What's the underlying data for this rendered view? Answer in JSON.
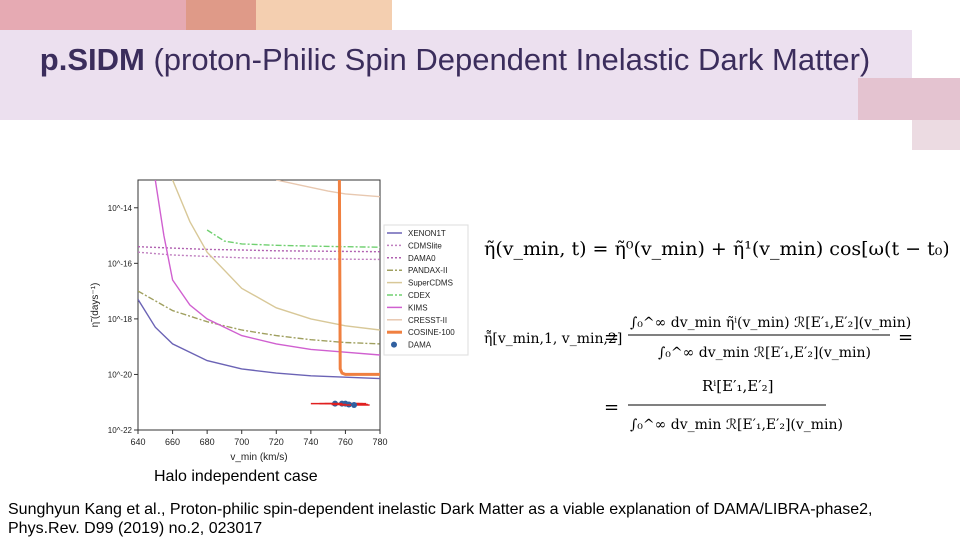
{
  "slide": {
    "title_bold": "p.SIDM",
    "title_rest": " (proton-Philic Spin Dependent Inelastic Dark Matter)",
    "caption": "Halo independent case",
    "citation": "Sunghyun Kang et al., Proton-philic spin-dependent inelastic Dark Matter as a viable explanation of DAMA/LIBRA-phase2, Phys.Rev. D99 (2019) no.2, 023017",
    "colors": {
      "band": "#ece0ef",
      "title": "#3b2d5c",
      "deco_pink": "#e6aab3",
      "deco_orange": "#f2c9a6",
      "deco_salmon": "#e09a8a"
    }
  },
  "chart_data": {
    "type": "line",
    "xlabel": "v_min (km/s)",
    "ylabel": "η̃ (days⁻¹)",
    "xlim": [
      640,
      780
    ],
    "ylim_log10": [
      -22,
      -13
    ],
    "y_scale": "log",
    "x_ticks": [
      "640",
      "660",
      "680",
      "700",
      "720",
      "740",
      "760",
      "780"
    ],
    "y_ticks": [
      "10^-14",
      "10^-16",
      "10^-18",
      "10^-20",
      "10^-22"
    ],
    "legend_position": "right",
    "series": [
      {
        "name": "XENON1T",
        "color": "#6b63b5",
        "style": "solid",
        "x": [
          640,
          650,
          660,
          680,
          700,
          720,
          740,
          760,
          780
        ],
        "log10_y": [
          -17.3,
          -18.3,
          -18.9,
          -19.5,
          -19.8,
          -19.95,
          -20.05,
          -20.1,
          -20.15
        ]
      },
      {
        "name": "CDMSlite",
        "color": "#c080c0",
        "style": "dotted",
        "x": [
          640,
          660,
          680,
          700,
          720,
          740,
          760,
          780
        ],
        "log10_y": [
          -15.6,
          -15.7,
          -15.75,
          -15.8,
          -15.82,
          -15.84,
          -15.85,
          -15.86
        ]
      },
      {
        "name": "DAMA0",
        "color": "#b060b0",
        "style": "dotted",
        "x": [
          640,
          660,
          680,
          700,
          720,
          740,
          760,
          780
        ],
        "log10_y": [
          -15.4,
          -15.45,
          -15.5,
          -15.52,
          -15.55,
          -15.56,
          -15.57,
          -15.58
        ]
      },
      {
        "name": "PANDAX-II",
        "color": "#a0a060",
        "style": "dashdot",
        "x": [
          640,
          660,
          680,
          700,
          720,
          740,
          760,
          780
        ],
        "log10_y": [
          -17.0,
          -17.7,
          -18.1,
          -18.4,
          -18.6,
          -18.75,
          -18.85,
          -18.9
        ]
      },
      {
        "name": "SuperCDMS",
        "color": "#d8c898",
        "style": "solid",
        "x": [
          660,
          670,
          680,
          700,
          720,
          740,
          760,
          780
        ],
        "log10_y": [
          -13.0,
          -14.5,
          -15.6,
          -16.9,
          -17.6,
          -18.0,
          -18.25,
          -18.4
        ]
      },
      {
        "name": "CDEX",
        "color": "#70d070",
        "style": "dashdot",
        "x": [
          680,
          690,
          700,
          720,
          740,
          760,
          780
        ],
        "log10_y": [
          -14.8,
          -15.2,
          -15.3,
          -15.35,
          -15.38,
          -15.4,
          -15.42
        ]
      },
      {
        "name": "KIMS",
        "color": "#d060d0",
        "style": "solid",
        "x": [
          650,
          655,
          660,
          670,
          680,
          700,
          720,
          740,
          760,
          780
        ],
        "log10_y": [
          -13.0,
          -15.0,
          -16.6,
          -17.5,
          -18.0,
          -18.6,
          -18.9,
          -19.1,
          -19.2,
          -19.3
        ]
      },
      {
        "name": "CRESST-II",
        "color": "#e8c8b0",
        "style": "solid",
        "x": [
          720,
          735,
          750,
          760,
          780
        ],
        "log10_y": [
          -13.0,
          -13.2,
          -13.4,
          -13.5,
          -13.6
        ]
      },
      {
        "name": "COSINE-100",
        "color": "#f08040",
        "style": "solid",
        "x": [
          756.5,
          757,
          758,
          760,
          770,
          780
        ],
        "log10_y": [
          -13.0,
          -19.8,
          -19.95,
          -20.0,
          -20.0,
          -20.0
        ]
      },
      {
        "name": "DAMA",
        "color": "#3060a0",
        "style": "points",
        "x": [
          754,
          758,
          760,
          762,
          765
        ],
        "log10_y": [
          -21.05,
          -21.05,
          -21.05,
          -21.08,
          -21.1
        ],
        "xerr_low": [
          740,
          745,
          748,
          752,
          757
        ],
        "xerr_high": [
          768,
          770,
          772,
          773,
          774
        ]
      }
    ]
  },
  "formula": {
    "eq1": "η̃(v_min, t) = η̃⁰(v_min) + η̃¹(v_min) cos[ω(t − t₀)]",
    "eq2_lhs": "η̄̃[v_min,1, v_min,2]",
    "eq2_num": "∫₀^∞ dv_min η̃ⁱ(v_min) ℛ[E′₁,E′₂](v_min)",
    "eq2_den": "∫₀^∞ dv_min ℛ[E′₁,E′₂](v_min)",
    "eq3_num": "Rⁱ[E′₁,E′₂]",
    "eq3_den": "∫₀^∞ dv_min ℛ[E′₁,E′₂](v_min)"
  }
}
